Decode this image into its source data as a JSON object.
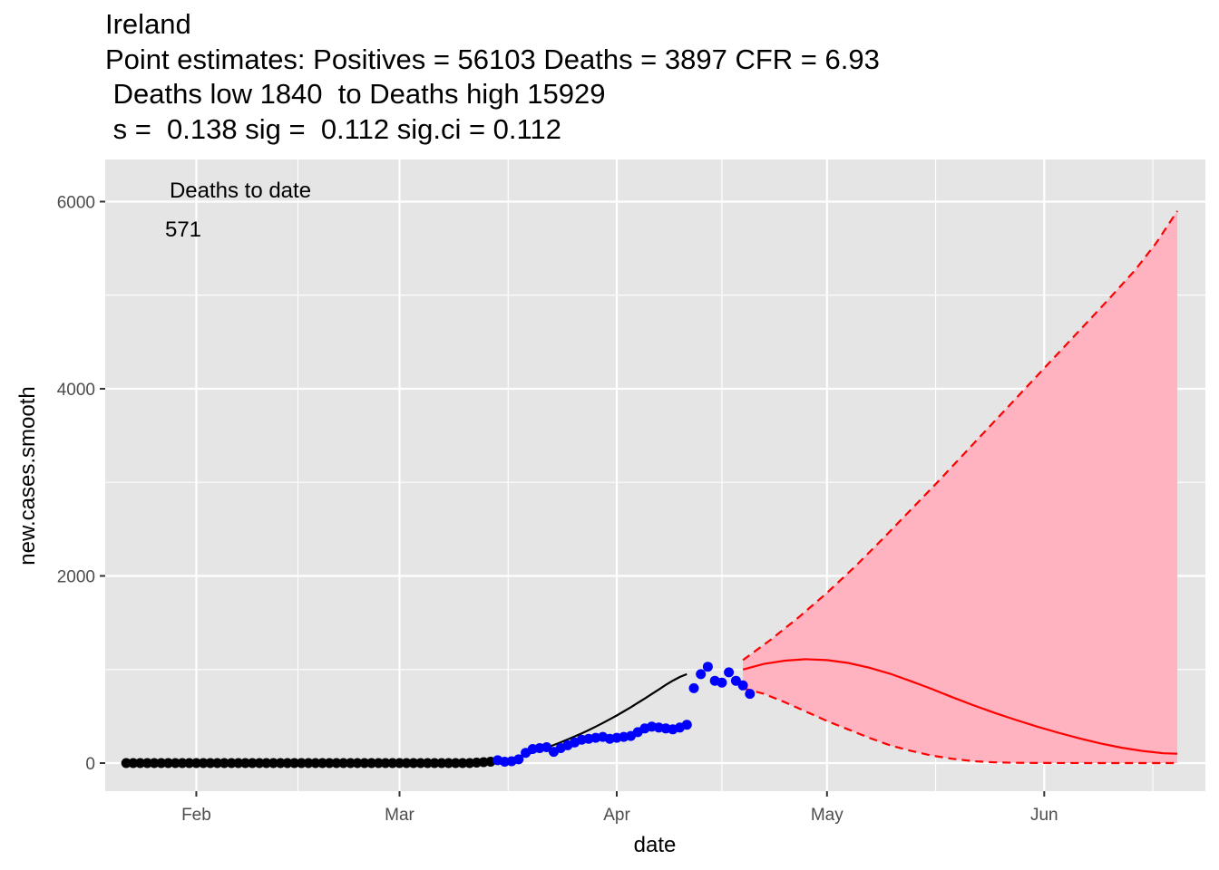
{
  "chart_data": {
    "type": "scatter",
    "title_lines": [
      "Ireland",
      "Point estimates: Positives = 56103 Deaths = 3897 CFR = 6.93",
      " Deaths low 1840  to Deaths high 15929",
      " s =  0.138 sig =  0.112 sig.ci = 0.112"
    ],
    "xlabel": "date",
    "ylabel": "new.cases.smooth",
    "x_range": [
      "2020-01-19",
      "2020-06-24"
    ],
    "ylim": [
      -300,
      6450
    ],
    "x_ticks": [
      {
        "date": "2020-02-01",
        "label": "Feb"
      },
      {
        "date": "2020-03-01",
        "label": "Mar"
      },
      {
        "date": "2020-04-01",
        "label": "Apr"
      },
      {
        "date": "2020-05-01",
        "label": "May"
      },
      {
        "date": "2020-06-01",
        "label": "Jun"
      }
    ],
    "y_ticks": [
      0,
      2000,
      4000,
      6000
    ],
    "grid": true,
    "annotation": {
      "line1": "Deaths to date",
      "line2": "571"
    },
    "colors": {
      "panel": "#e5e5e5",
      "grid": "#ffffff",
      "black_points": "#000000",
      "blue_points": "#0000ff",
      "fit_line": "#000000",
      "projection_line": "#ff0000",
      "ribbon_fill": "#ffb3c1"
    },
    "black_points": {
      "start_date": "2020-01-22",
      "values": [
        0,
        0,
        0,
        0,
        0,
        0,
        0,
        0,
        0,
        0,
        0,
        0,
        0,
        0,
        0,
        0,
        0,
        0,
        0,
        0,
        0,
        0,
        0,
        0,
        0,
        0,
        0,
        0,
        0,
        0,
        0,
        0,
        0,
        0,
        0,
        0,
        0,
        0,
        0,
        0,
        0,
        0,
        0,
        0,
        0,
        0,
        0,
        0,
        0,
        0,
        5,
        10,
        15
      ]
    },
    "blue_points": {
      "start_date": "2020-03-15",
      "values": [
        30,
        15,
        20,
        40,
        110,
        150,
        160,
        170,
        120,
        160,
        190,
        220,
        250,
        260,
        270,
        280,
        260,
        270,
        280,
        290,
        330,
        370,
        390,
        380,
        370,
        360,
        380,
        410,
        800,
        950,
        1030,
        880,
        860,
        970,
        880,
        830,
        740
      ]
    },
    "fit_line": {
      "start_date": "2020-03-14",
      "values": [
        0,
        15,
        30,
        48,
        68,
        90,
        113,
        138,
        165,
        193,
        222,
        253,
        285,
        318,
        353,
        390,
        428,
        468,
        509,
        552,
        597,
        643,
        690,
        738,
        787,
        836,
        881,
        920,
        950
      ]
    },
    "projection": {
      "start_date": "2020-04-19",
      "end_date": "2020-06-20",
      "central": [
        [
          "2020-04-19",
          1000
        ],
        [
          "2020-04-22",
          1060
        ],
        [
          "2020-04-25",
          1095
        ],
        [
          "2020-04-28",
          1110
        ],
        [
          "2020-05-01",
          1100
        ],
        [
          "2020-05-04",
          1070
        ],
        [
          "2020-05-07",
          1020
        ],
        [
          "2020-05-10",
          955
        ],
        [
          "2020-05-13",
          875
        ],
        [
          "2020-05-16",
          790
        ],
        [
          "2020-05-19",
          700
        ],
        [
          "2020-05-22",
          615
        ],
        [
          "2020-05-25",
          535
        ],
        [
          "2020-05-28",
          460
        ],
        [
          "2020-05-31",
          390
        ],
        [
          "2020-06-03",
          325
        ],
        [
          "2020-06-06",
          265
        ],
        [
          "2020-06-09",
          210
        ],
        [
          "2020-06-12",
          165
        ],
        [
          "2020-06-15",
          130
        ],
        [
          "2020-06-18",
          105
        ],
        [
          "2020-06-20",
          100
        ]
      ],
      "upper": [
        [
          "2020-04-19",
          1100
        ],
        [
          "2020-04-23",
          1320
        ],
        [
          "2020-04-27",
          1560
        ],
        [
          "2020-05-01",
          1820
        ],
        [
          "2020-05-05",
          2100
        ],
        [
          "2020-05-09",
          2400
        ],
        [
          "2020-05-13",
          2710
        ],
        [
          "2020-05-17",
          3020
        ],
        [
          "2020-05-21",
          3340
        ],
        [
          "2020-05-25",
          3660
        ],
        [
          "2020-05-29",
          3980
        ],
        [
          "2020-06-02",
          4300
        ],
        [
          "2020-06-06",
          4620
        ],
        [
          "2020-06-10",
          4940
        ],
        [
          "2020-06-14",
          5270
        ],
        [
          "2020-06-17",
          5560
        ],
        [
          "2020-06-20",
          5900
        ]
      ],
      "lower": [
        [
          "2020-04-19",
          800
        ],
        [
          "2020-04-22",
          740
        ],
        [
          "2020-04-25",
          650
        ],
        [
          "2020-04-28",
          550
        ],
        [
          "2020-05-01",
          450
        ],
        [
          "2020-05-04",
          360
        ],
        [
          "2020-05-07",
          270
        ],
        [
          "2020-05-10",
          190
        ],
        [
          "2020-05-13",
          130
        ],
        [
          "2020-05-16",
          80
        ],
        [
          "2020-05-19",
          45
        ],
        [
          "2020-05-22",
          20
        ],
        [
          "2020-05-25",
          8
        ],
        [
          "2020-05-28",
          3
        ],
        [
          "2020-06-01",
          1
        ],
        [
          "2020-06-10",
          0
        ],
        [
          "2020-06-20",
          0
        ]
      ]
    }
  }
}
